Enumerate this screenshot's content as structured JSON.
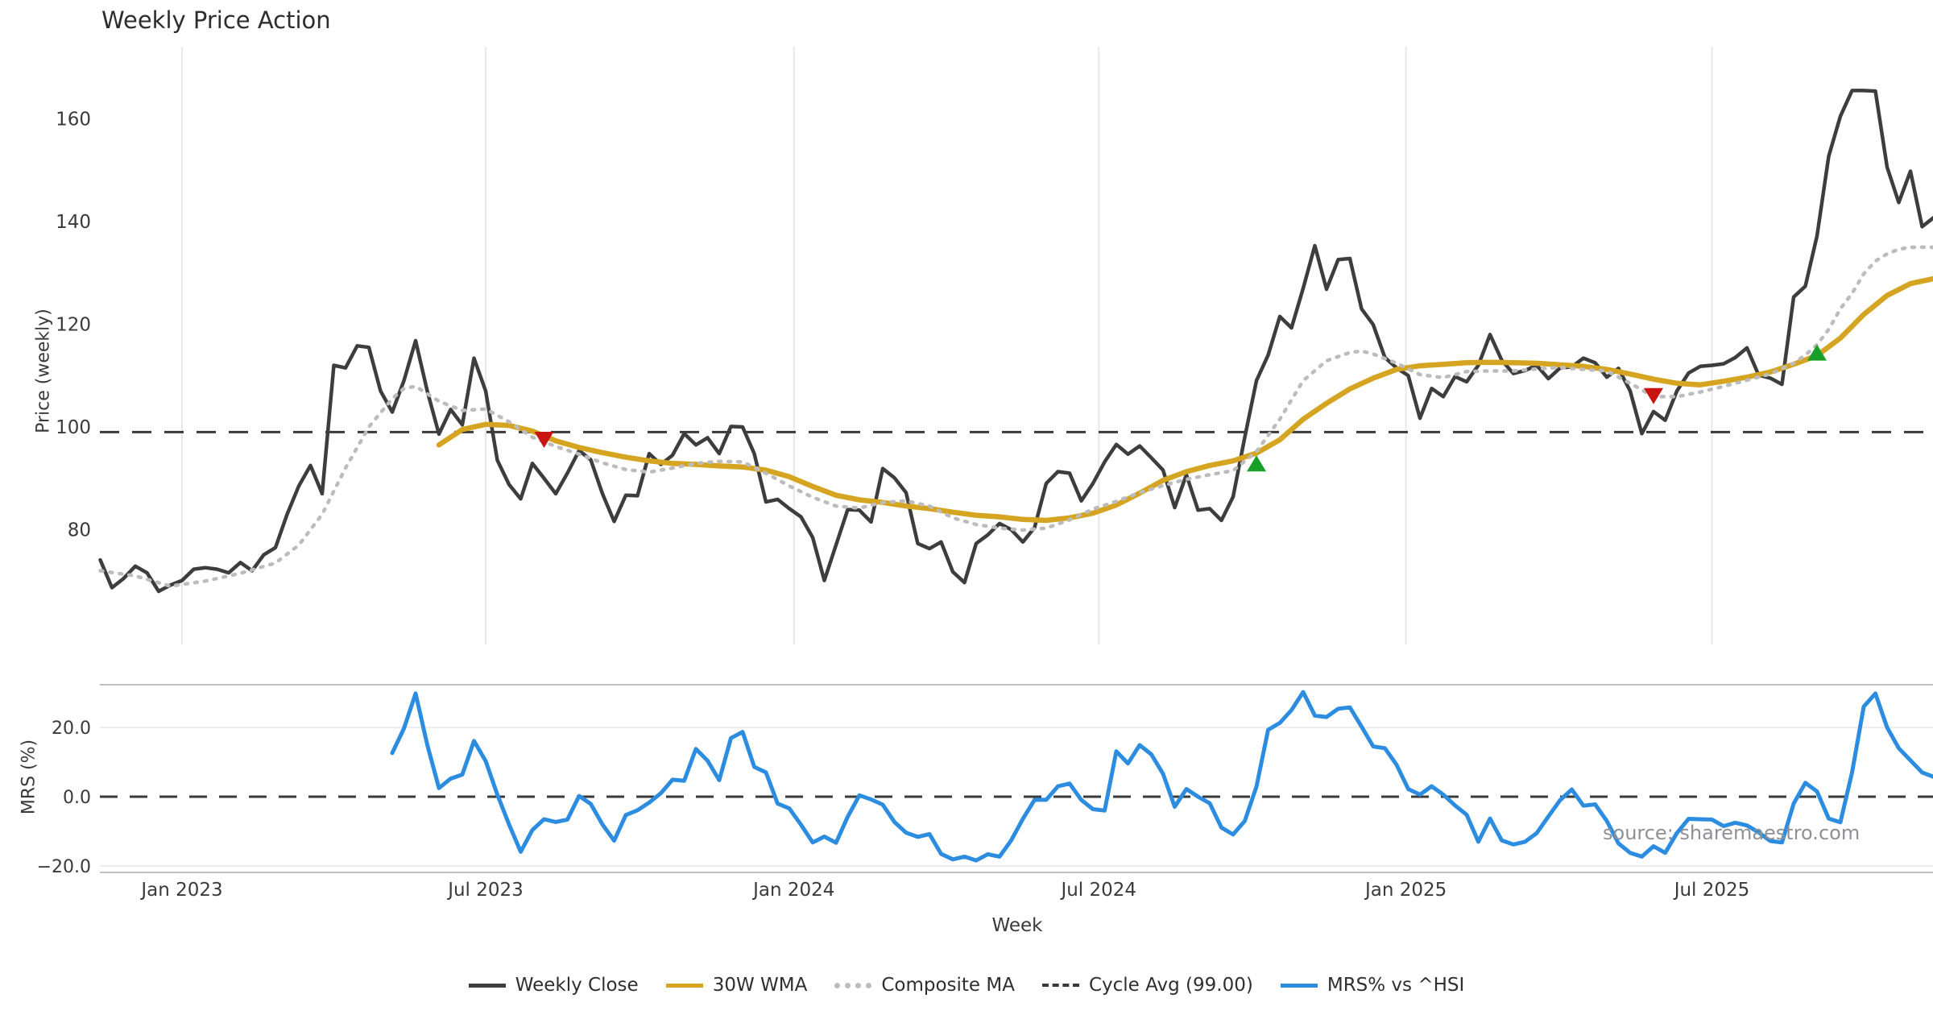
{
  "title": "Weekly Price Action",
  "source_note": "source: sharemaestro.com",
  "colors": {
    "weekly_close": "#3d3d3d",
    "wma": "#d5a421",
    "composite": "#bcbcbc",
    "cycle_avg": "#3a3a3a",
    "mrs": "#2b8ce0",
    "sell_marker": "#c91414",
    "buy_marker": "#16a02a",
    "grid": "#e8e8e8",
    "spine": "#c0c0c4",
    "tick_text": "#3a3a3a"
  },
  "axes": {
    "xlabel": "Week",
    "price_ylabel": "Price (weekly)",
    "mrs_ylabel": "MRS (%)",
    "price_ticks": [
      160,
      140,
      120,
      100,
      80
    ],
    "mrs_ticks": [
      {
        "label": "20.0",
        "value": 20
      },
      {
        "label": "0.0",
        "value": 0
      },
      {
        "label": "−20.0",
        "value": -20
      }
    ],
    "x_ticks": [
      {
        "label": "Jan 2023",
        "week": 0
      },
      {
        "label": "Jul 2023",
        "week": 26
      },
      {
        "label": "Jan 2024",
        "week": 52.4
      },
      {
        "label": "Jul 2024",
        "week": 78.5
      },
      {
        "label": "Jan 2025",
        "week": 104.8
      },
      {
        "label": "Jul 2025",
        "week": 131
      }
    ]
  },
  "legend": {
    "items": [
      {
        "label": "Weekly Close",
        "style": "solid",
        "color": "#3d3d3d"
      },
      {
        "label": "30W WMA",
        "style": "solid",
        "color": "#d5a421"
      },
      {
        "label": "Composite MA",
        "style": "dotted",
        "color": "#bcbcbc"
      },
      {
        "label": "Cycle Avg (99.00)",
        "style": "dashed",
        "color": "#3a3a3a"
      },
      {
        "label": "MRS% vs ^HSI",
        "style": "solid",
        "color": "#2b8ce0"
      }
    ]
  },
  "chart_data": {
    "type": "line",
    "x_axis": "weeks, week 0 = week of Jan 1 2023 (data starts 7 weeks earlier, mid-Nov 2022)",
    "panels": [
      {
        "name": "price",
        "ylabel": "Price (weekly)",
        "ylim": [
          57,
          177
        ],
        "grid": "vertical"
      },
      {
        "name": "mrs",
        "ylabel": "MRS (%)",
        "ylim": [
          -22,
          32.5
        ],
        "grid": "horizontal"
      }
    ],
    "cycle_avg_value": 99.0,
    "series": [
      {
        "name": "Weekly Close",
        "panel": "price",
        "start_week": -7,
        "values": [
          74.1,
          68.7,
          70.5,
          72.9,
          71.6,
          68.0,
          69.2,
          70.1,
          72.3,
          72.6,
          72.3,
          71.6,
          73.6,
          72.0,
          75.1,
          76.5,
          83.0,
          88.5,
          92.5,
          87.0,
          112.0,
          111.5,
          115.8,
          115.5,
          107.0,
          102.9,
          109.0,
          116.8,
          107.0,
          98.6,
          103.4,
          100.4,
          113.4,
          107.0,
          93.5,
          88.8,
          86.0,
          92.9,
          90.0,
          87.0,
          91.0,
          95.4,
          93.6,
          87.0,
          81.6,
          86.7,
          86.6,
          94.8,
          92.7,
          94.5,
          98.7,
          96.5,
          97.9,
          94.8,
          100.1,
          100.0,
          94.8,
          85.4,
          85.9,
          84.1,
          82.5,
          78.5,
          70.1,
          77.0,
          83.9,
          83.8,
          81.5,
          91.9,
          90.1,
          87.2,
          77.3,
          76.3,
          77.6,
          71.8,
          69.7,
          77.3,
          79.0,
          81.2,
          80.0,
          77.6,
          80.4,
          89.0,
          91.3,
          91.0,
          85.6,
          89.0,
          93.2,
          96.6,
          94.7,
          96.3,
          94.0,
          91.6,
          84.3,
          90.7,
          83.8,
          84.1,
          81.8,
          86.4,
          98.0,
          109.0,
          114.0,
          121.5,
          119.3,
          127.0,
          135.3,
          126.8,
          132.6,
          132.8,
          123.0,
          119.9,
          113.5,
          111.5,
          110.0,
          101.7,
          107.5,
          105.9,
          109.8,
          108.8,
          112.0,
          118.0,
          113.0,
          110.4,
          111.0,
          112.0,
          109.4,
          111.5,
          111.7,
          113.4,
          112.5,
          109.7,
          111.4,
          107.0,
          98.7,
          103.0,
          101.3,
          107.0,
          110.5,
          111.8,
          112.0,
          112.3,
          113.5,
          115.4,
          110.1,
          109.5,
          108.3,
          125.3,
          127.4,
          137.2,
          152.7,
          160.5,
          165.5,
          165.5,
          165.4,
          150.6,
          143.7,
          149.8,
          139.0,
          140.8
        ]
      },
      {
        "name": "30W WMA",
        "panel": "price",
        "points": [
          [
            22,
            96.5
          ],
          [
            24,
            99.5
          ],
          [
            26,
            100.5
          ],
          [
            28,
            100.3
          ],
          [
            30,
            99.2
          ],
          [
            32,
            97.3
          ],
          [
            34,
            96.0
          ],
          [
            36,
            95.0
          ],
          [
            38,
            94.1
          ],
          [
            40,
            93.4
          ],
          [
            42,
            92.9
          ],
          [
            44,
            92.7
          ],
          [
            46,
            92.4
          ],
          [
            48,
            92.2
          ],
          [
            50,
            91.6
          ],
          [
            52,
            90.3
          ],
          [
            54,
            88.4
          ],
          [
            56,
            86.7
          ],
          [
            58,
            85.8
          ],
          [
            60,
            85.3
          ],
          [
            62,
            84.6
          ],
          [
            64,
            84.1
          ],
          [
            66,
            83.4
          ],
          [
            68,
            82.8
          ],
          [
            70,
            82.5
          ],
          [
            72,
            82.0
          ],
          [
            74,
            81.8
          ],
          [
            76,
            82.3
          ],
          [
            78,
            83.2
          ],
          [
            80,
            84.8
          ],
          [
            82,
            87.1
          ],
          [
            84,
            89.6
          ],
          [
            86,
            91.3
          ],
          [
            88,
            92.5
          ],
          [
            90,
            93.4
          ],
          [
            92,
            94.9
          ],
          [
            94,
            97.5
          ],
          [
            96,
            101.5
          ],
          [
            98,
            104.6
          ],
          [
            100,
            107.4
          ],
          [
            102,
            109.5
          ],
          [
            104,
            111.2
          ],
          [
            106,
            111.9
          ],
          [
            108,
            112.2
          ],
          [
            110,
            112.5
          ],
          [
            112,
            112.6
          ],
          [
            114,
            112.5
          ],
          [
            116,
            112.4
          ],
          [
            118,
            112.1
          ],
          [
            120,
            111.8
          ],
          [
            122,
            111.2
          ],
          [
            124,
            110.3
          ],
          [
            126,
            109.3
          ],
          [
            128,
            108.5
          ],
          [
            130,
            108.2
          ],
          [
            132,
            108.9
          ],
          [
            134,
            109.7
          ],
          [
            136,
            110.7
          ],
          [
            138,
            112.2
          ],
          [
            140,
            113.9
          ],
          [
            142,
            117.3
          ],
          [
            144,
            121.9
          ],
          [
            146,
            125.6
          ],
          [
            148,
            127.9
          ],
          [
            150,
            128.9
          ]
        ]
      },
      {
        "name": "Composite MA",
        "panel": "price",
        "points": [
          [
            -7,
            72.0
          ],
          [
            -4,
            71.0
          ],
          [
            -1,
            69.0
          ],
          [
            2,
            70.0
          ],
          [
            5,
            71.5
          ],
          [
            8,
            73.5
          ],
          [
            10,
            77.0
          ],
          [
            12,
            83.0
          ],
          [
            14,
            92.0
          ],
          [
            16,
            100.0
          ],
          [
            18,
            105.5
          ],
          [
            19,
            107.5
          ],
          [
            20,
            107.9
          ],
          [
            22,
            105.0
          ],
          [
            24,
            103.2
          ],
          [
            26,
            103.5
          ],
          [
            28,
            101.0
          ],
          [
            30,
            98.0
          ],
          [
            32,
            96.2
          ],
          [
            34,
            94.7
          ],
          [
            36,
            93.0
          ],
          [
            38,
            91.7
          ],
          [
            40,
            91.2
          ],
          [
            42,
            92.0
          ],
          [
            44,
            92.9
          ],
          [
            46,
            93.3
          ],
          [
            48,
            93.2
          ],
          [
            50,
            91.0
          ],
          [
            52,
            88.5
          ],
          [
            54,
            86.3
          ],
          [
            56,
            84.6
          ],
          [
            58,
            84.2
          ],
          [
            60,
            85.3
          ],
          [
            62,
            85.6
          ],
          [
            64,
            84.6
          ],
          [
            66,
            82.3
          ],
          [
            68,
            81.0
          ],
          [
            70,
            80.3
          ],
          [
            72,
            79.9
          ],
          [
            74,
            80.3
          ],
          [
            76,
            81.9
          ],
          [
            78,
            84.0
          ],
          [
            80,
            85.5
          ],
          [
            82,
            87.2
          ],
          [
            84,
            88.6
          ],
          [
            86,
            89.8
          ],
          [
            88,
            90.7
          ],
          [
            90,
            91.5
          ],
          [
            92,
            95.2
          ],
          [
            94,
            101.5
          ],
          [
            96,
            109.0
          ],
          [
            98,
            112.9
          ],
          [
            100,
            114.5
          ],
          [
            101,
            114.8
          ],
          [
            102,
            114.2
          ],
          [
            104,
            112.4
          ],
          [
            106,
            110.2
          ],
          [
            108,
            109.6
          ],
          [
            110,
            110.8
          ],
          [
            112,
            110.9
          ],
          [
            114,
            110.9
          ],
          [
            116,
            111.3
          ],
          [
            118,
            111.6
          ],
          [
            120,
            111.2
          ],
          [
            122,
            110.9
          ],
          [
            124,
            108.5
          ],
          [
            126,
            105.9
          ],
          [
            128,
            105.9
          ],
          [
            130,
            106.8
          ],
          [
            132,
            107.9
          ],
          [
            134,
            109.1
          ],
          [
            136,
            110.3
          ],
          [
            138,
            112.4
          ],
          [
            139,
            114.0
          ],
          [
            140,
            116.0
          ],
          [
            141,
            119.0
          ],
          [
            142,
            123.0
          ],
          [
            143,
            126.0
          ],
          [
            144,
            129.8
          ],
          [
            145,
            132.3
          ],
          [
            146,
            133.7
          ],
          [
            147,
            134.6
          ],
          [
            148,
            135.0
          ],
          [
            150,
            135.0
          ]
        ]
      },
      {
        "name": "MRS% vs ^HSI",
        "panel": "mrs",
        "start_week": 18,
        "values": [
          12.6,
          19.7,
          29.8,
          15.0,
          2.5,
          5.2,
          6.4,
          16.1,
          10.3,
          0.6,
          -8.0,
          -15.9,
          -9.6,
          -6.5,
          -7.3,
          -6.6,
          0.2,
          -2.1,
          -8.0,
          -12.7,
          -5.3,
          -3.9,
          -1.7,
          1.0,
          4.9,
          4.6,
          13.8,
          10.4,
          4.8,
          16.9,
          18.7,
          8.6,
          7.0,
          -2.0,
          -3.4,
          -8.1,
          -13.2,
          -11.5,
          -13.3,
          -5.8,
          0.4,
          -0.8,
          -2.3,
          -7.3,
          -10.4,
          -11.6,
          -10.8,
          -16.5,
          -18.1,
          -17.3,
          -18.4,
          -16.6,
          -17.3,
          -12.6,
          -6.4,
          -0.9,
          -0.9,
          3.0,
          3.8,
          -0.9,
          -3.6,
          -4.0,
          13.1,
          9.6,
          14.9,
          12.2,
          6.6,
          -2.9,
          2.2,
          0.0,
          -1.9,
          -8.9,
          -10.9,
          -7.0,
          2.9,
          19.3,
          21.3,
          25.0,
          30.2,
          23.4,
          23.0,
          25.4,
          25.8,
          20.2,
          14.5,
          14.0,
          9.2,
          2.2,
          0.6,
          3.0,
          0.6,
          -2.5,
          -5.2,
          -13.0,
          -6.3,
          -12.6,
          -13.8,
          -13.0,
          -10.5,
          -5.7,
          -1.0,
          2.1,
          -2.6,
          -2.2,
          -7.0,
          -13.5,
          -16.2,
          -17.3,
          -14.3,
          -16.2,
          -10.5,
          -6.4,
          -6.5,
          -6.6,
          -8.5,
          -7.5,
          -8.3,
          -10.3,
          -12.8,
          -13.2,
          -2.0,
          4.0,
          1.5,
          -6.3,
          -7.4,
          7.0,
          26.0,
          29.8,
          20.0,
          14.0,
          10.5,
          7.0,
          5.7
        ]
      }
    ],
    "markers": [
      {
        "shape": "triangle-down",
        "meaning": "sell-signal",
        "week": 31,
        "value": 97.5
      },
      {
        "shape": "triangle-up",
        "meaning": "buy-signal",
        "week": 92,
        "value": 92.9
      },
      {
        "shape": "triangle-down",
        "meaning": "sell-signal",
        "week": 126,
        "value": 106.0
      },
      {
        "shape": "triangle-up",
        "meaning": "buy-signal",
        "week": 140,
        "value": 114.5
      }
    ]
  }
}
